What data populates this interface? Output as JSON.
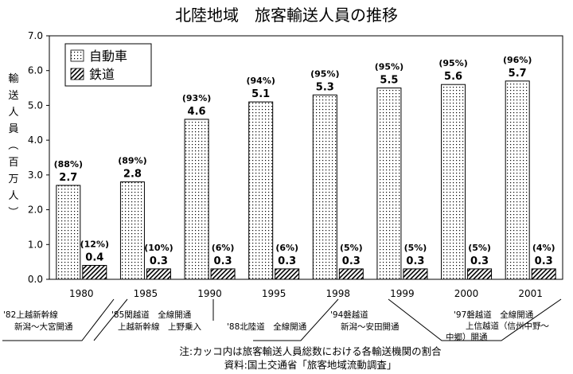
{
  "chart_data": {
    "type": "bar",
    "title": "北陸地域　旅客輸送人員の推移",
    "ylabel": "輸送人員（百万人）",
    "ylim": [
      0,
      7
    ],
    "yticks": [
      "0.0",
      "1.0",
      "2.0",
      "3.0",
      "4.0",
      "5.0",
      "6.0",
      "7.0"
    ],
    "categories": [
      "1980",
      "1985",
      "1990",
      "1995",
      "1998",
      "1999",
      "2000",
      "2001"
    ],
    "legend_position": "top-left",
    "grid": false,
    "series": [
      {
        "name": "自動車",
        "values": [
          2.7,
          2.8,
          4.6,
          5.1,
          5.3,
          5.5,
          5.6,
          5.7
        ],
        "value_labels": [
          "2.7",
          "2.8",
          "4.6",
          "5.1",
          "5.3",
          "5.5",
          "5.6",
          "5.7"
        ],
        "share_labels": [
          "(88%)",
          "(89%)",
          "(93%)",
          "(94%)",
          "(95%)",
          "(95%)",
          "(95%)",
          "(96%)"
        ],
        "pattern": "dots"
      },
      {
        "name": "鉄道",
        "values": [
          0.4,
          0.3,
          0.3,
          0.3,
          0.3,
          0.3,
          0.3,
          0.3
        ],
        "value_labels": [
          "0.4",
          "0.3",
          "0.3",
          "0.3",
          "0.3",
          "0.3",
          "0.3",
          "0.3"
        ],
        "share_labels": [
          "(12%)",
          "(10%)",
          "(6%)",
          "(6%)",
          "(5%)",
          "(5%)",
          "(5%)",
          "(4%)"
        ],
        "pattern": "hatch"
      }
    ],
    "annotations": [
      {
        "category": "1980",
        "lines": [
          "'82上越新幹線",
          "新潟～大宮開通"
        ]
      },
      {
        "category": "1985",
        "lines": [
          "'85関越道　全線開通",
          "上越新幹線　上野乗入"
        ]
      },
      {
        "category": "1990",
        "lines": [
          "'88北陸道　全線開通"
        ]
      },
      {
        "category": "1998",
        "lines": [
          "'94磐越道",
          "新潟～安田開通"
        ]
      },
      {
        "category": "2001",
        "lines": [
          "'97磐越道　全線開通",
          "上信越道（信州中野～",
          "中郷）開通"
        ]
      }
    ]
  },
  "footnote": {
    "note": "注:カッコ内は旅客輸送人員総数における各輸送機関の割合",
    "source": "資料:国土交通省「旅客地域流動調査」"
  }
}
